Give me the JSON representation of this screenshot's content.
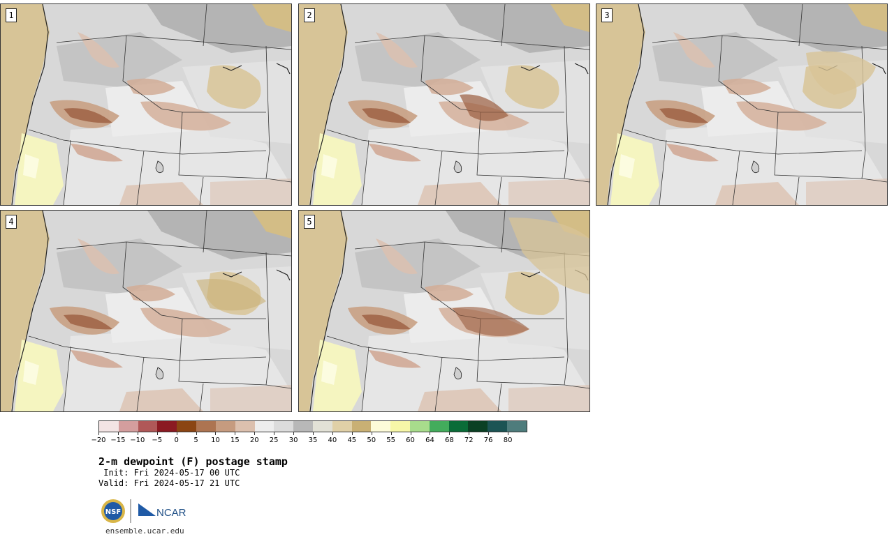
{
  "panels": [
    {
      "label": "1"
    },
    {
      "label": "2"
    },
    {
      "label": "3"
    },
    {
      "label": "4"
    },
    {
      "label": "5"
    }
  ],
  "colorbar": {
    "colors": [
      "#f3e4e4",
      "#d49e9e",
      "#b05858",
      "#8b1a22",
      "#8b4513",
      "#ad7451",
      "#c69b7f",
      "#dcc0ae",
      "#eeeeee",
      "#dcdcdc",
      "#b8b8b8",
      "#e2e1d6",
      "#e0d0a7",
      "#c9b074",
      "#fdfbd9",
      "#f7f7a8",
      "#a8dc8c",
      "#43ac5c",
      "#0a6c38",
      "#0b4024",
      "#1c5454",
      "#4e7c7c"
    ],
    "tick_labels": [
      "−20",
      "−15",
      "−10",
      "−5",
      "0",
      "5",
      "10",
      "15",
      "20",
      "25",
      "30",
      "35",
      "40",
      "45",
      "50",
      "55",
      "60",
      "64",
      "68",
      "72",
      "76",
      "80"
    ]
  },
  "title": "2-m dewpoint (F) postage stamp",
  "init": " Init: Fri 2024-05-17 00 UTC",
  "valid": "Valid: Fri 2024-05-17 21 UTC",
  "logos": {
    "nsf": "NSF",
    "ncar": "NCAR"
  },
  "website": "ensemble.ucar.edu"
}
